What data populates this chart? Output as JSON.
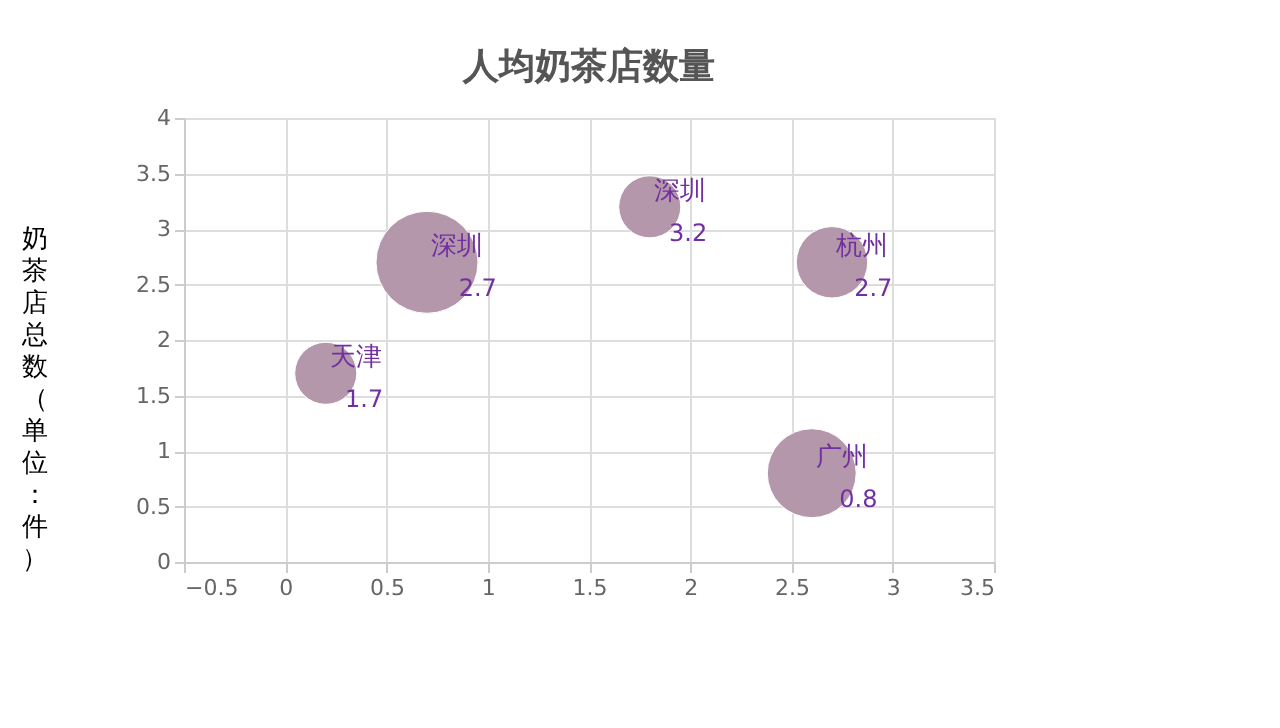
{
  "chart_data": {
    "type": "bubble",
    "title": "人均奶茶店数量",
    "ylabel": "奶茶店总数（单位：件）",
    "x": [
      0.2,
      0.7,
      1.8,
      2.7,
      2.6
    ],
    "series": [
      {
        "color": "#b497aa",
        "values": [
          1.7,
          2.7,
          3.2,
          2.7,
          0.8
        ],
        "sizes": [
          0.37,
          1,
          0.37,
          0.49,
          0.76
        ]
      }
    ],
    "data_labels": true,
    "annotations": [
      {
        "text": "天津",
        "x": 0.2,
        "y": 1.7
      },
      {
        "text": "深圳",
        "x": 0.7,
        "y": 2.7
      },
      {
        "text": "深圳",
        "x": 1.8,
        "y": 3.2
      },
      {
        "text": "杭州",
        "x": 2.7,
        "y": 2.7
      },
      {
        "text": "广州",
        "x": 2.6,
        "y": 0.8
      }
    ],
    "xlim": [
      -0.5,
      3.5
    ],
    "xticks": [
      -0.5,
      0,
      0.5,
      1,
      1.5,
      2,
      2.5,
      3,
      3.5
    ],
    "ylim": [
      0,
      4
    ],
    "yticks": [
      0,
      0.5,
      1,
      1.5,
      2,
      2.5,
      3,
      3.5,
      4
    ],
    "grid": true
  }
}
